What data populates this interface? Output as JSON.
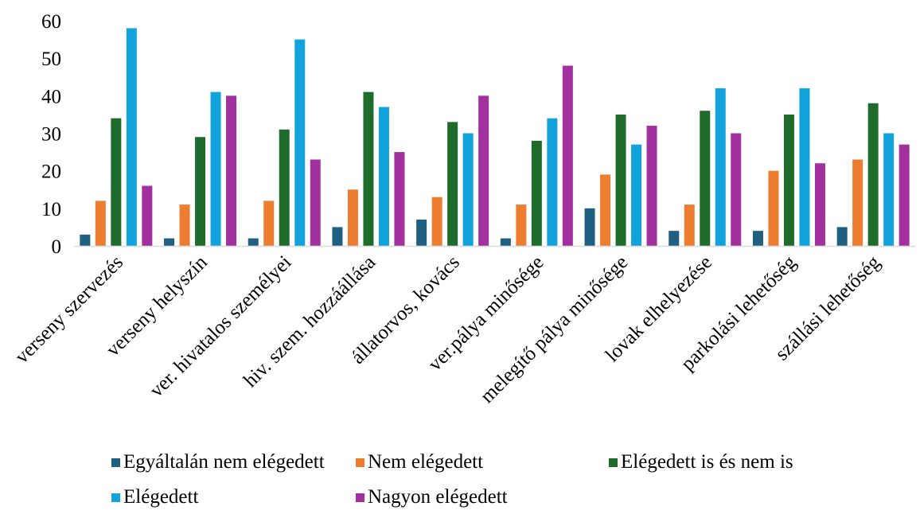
{
  "chart_data": {
    "type": "bar",
    "title": "",
    "xlabel": "",
    "ylabel": "",
    "ylim": [
      0,
      60
    ],
    "yticks": [
      0,
      10,
      20,
      30,
      40,
      50,
      60
    ],
    "grid": false,
    "legend_position": "bottom",
    "categories": [
      "verseny szervezés",
      "verseny helyszín",
      "ver. hivatalos személyei",
      "hiv. szem. hozzáállása",
      "állatorvos, kovács",
      "ver.pálya minősége",
      "melegítő pálya minősége",
      "lovak elhelyezése",
      "parkolási lehetőség",
      "szállási lehetőség"
    ],
    "series": [
      {
        "name": "Egyáltalán nem elégedett",
        "color": "#1f5f82",
        "values": [
          3,
          2,
          2,
          5,
          7,
          2,
          10,
          4,
          4,
          5
        ]
      },
      {
        "name": "Nem elégedett",
        "color": "#ed7d31",
        "values": [
          12,
          11,
          12,
          15,
          13,
          11,
          19,
          11,
          20,
          23
        ]
      },
      {
        "name": "Elégedett is és nem is",
        "color": "#1e6b2c",
        "values": [
          34,
          29,
          31,
          41,
          33,
          28,
          35,
          36,
          35,
          38
        ]
      },
      {
        "name": "Elégedett",
        "color": "#13a3dc",
        "values": [
          58,
          41,
          55,
          37,
          30,
          34,
          27,
          42,
          42,
          30
        ]
      },
      {
        "name": "Nagyon elégedett",
        "color": "#a2309e",
        "values": [
          16,
          40,
          23,
          25,
          40,
          48,
          32,
          30,
          22,
          27
        ]
      }
    ]
  }
}
